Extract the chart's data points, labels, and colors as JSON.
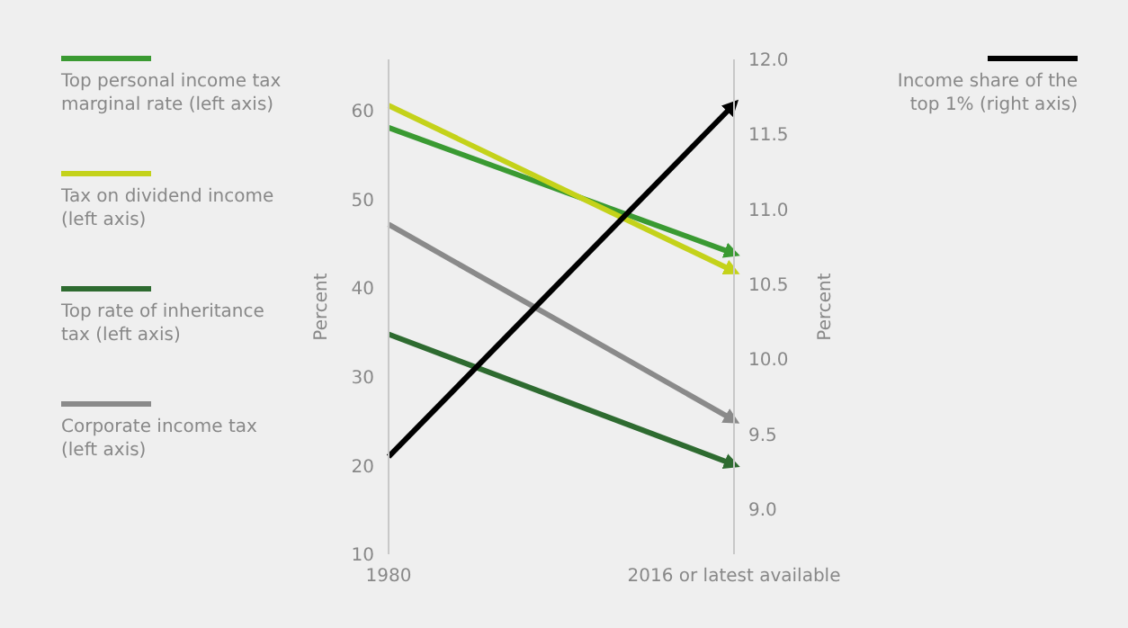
{
  "chart_data": {
    "type": "line",
    "categories": [
      "1980",
      "2016 or latest available"
    ],
    "ylabel": "Percent",
    "y2label": "Percent",
    "ylim": [
      10,
      65.8
    ],
    "yticks": [
      10,
      20,
      30,
      40,
      50,
      60
    ],
    "y2lim": [
      8.7,
      12
    ],
    "y2ticks": [
      {
        "value": 9,
        "label": "9.0"
      },
      9.5,
      {
        "value": 10,
        "label": "10.0"
      },
      10.5,
      {
        "value": 11,
        "label": "11.0"
      },
      11.5,
      {
        "value": 12,
        "label": "12.0"
      }
    ],
    "legend": "left",
    "marker": "none",
    "series": [
      {
        "name": "Top personal income tax marginal rate (left axis)",
        "color": "#3a9a32",
        "values": [
          58.1,
          43.9
        ]
      },
      {
        "name": "Tax on dividend income (left axis)",
        "color": "#c4d21a",
        "values": [
          60.6,
          41.9
        ]
      },
      {
        "name": "Top rate of inheritance tax (left axis)",
        "color": "#2e6b30",
        "values": [
          34.8,
          20.1
        ]
      },
      {
        "name": "Corporate income tax (left axis)",
        "color": "#8a8a8a",
        "values": [
          47.2,
          25.1
        ]
      },
      {
        "name": "Income share of the top 1% (right axis)",
        "color": "#000000",
        "values": [
          9.35,
          11.7
        ],
        "axis": "y2"
      }
    ]
  }
}
